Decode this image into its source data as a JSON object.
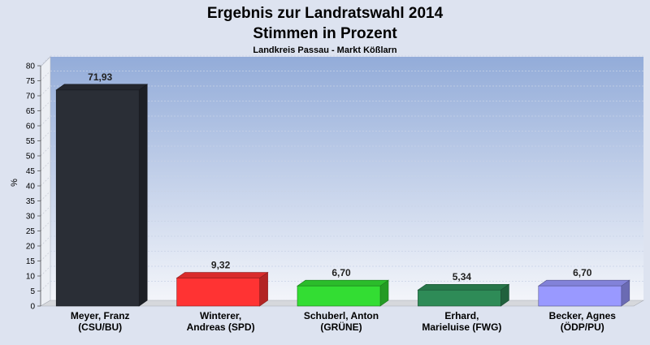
{
  "chart_data": {
    "type": "bar",
    "title": "Ergebnis zur Landratswahl 2014",
    "subtitle": "Stimmen in Prozent",
    "subtitle2": "Landkreis Passau - Markt Kößlarn",
    "ylabel": "%",
    "ylim": [
      0,
      80
    ],
    "ytick_step": 5,
    "grid": true,
    "categories": [
      [
        "Meyer, Franz",
        "(CSU/BU)"
      ],
      [
        "Winterer,",
        "Andreas (SPD)"
      ],
      [
        "Schuberl, Anton",
        "(GRÜNE)"
      ],
      [
        "Erhard,",
        "Marieluise (FWG)"
      ],
      [
        "Becker, Agnes",
        "(ÖDP/PU)"
      ]
    ],
    "values": [
      71.93,
      9.32,
      6.7,
      5.34,
      6.7
    ],
    "value_labels": [
      "71,93",
      "9,32",
      "6,70",
      "5,34",
      "6,70"
    ],
    "colors": [
      "#2a2e36",
      "#ff3333",
      "#33dd33",
      "#2e8b57",
      "#9999ff"
    ]
  }
}
